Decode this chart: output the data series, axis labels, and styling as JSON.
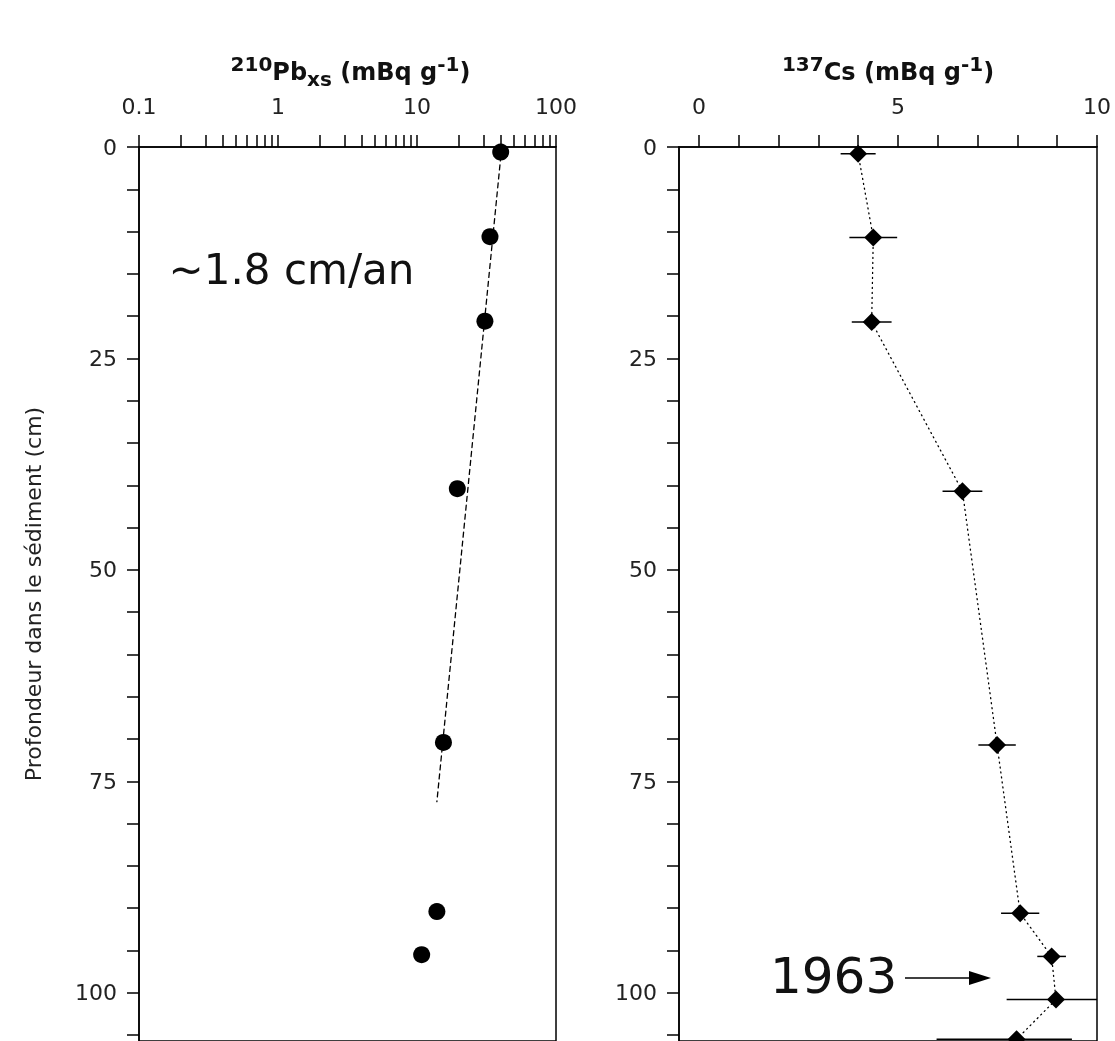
{
  "chart_data": [
    {
      "type": "scatter",
      "xlabel": "$^{210}$Pb$_{xs}$ (mBq g$^{-1}$)",
      "ylabel": "Profondeur dans le sédiment (cm)",
      "log": "x",
      "xlim": [
        0.1,
        100
      ],
      "xticks": [
        0.1,
        {
          "value": 0.2,
          "label": null
        },
        {
          "value": 0.3,
          "label": null
        },
        {
          "value": 0.4,
          "label": null
        },
        {
          "value": 0.5,
          "label": null
        },
        {
          "value": 0.6,
          "label": null
        },
        {
          "value": 0.7,
          "label": null
        },
        {
          "value": 0.8,
          "label": null
        },
        {
          "value": 0.9,
          "label": null
        },
        1,
        {
          "value": 2,
          "label": null
        },
        {
          "value": 3,
          "label": null
        },
        {
          "value": 4,
          "label": null
        },
        {
          "value": 5,
          "label": null
        },
        {
          "value": 6,
          "label": null
        },
        {
          "value": 7,
          "label": null
        },
        {
          "value": 8,
          "label": null
        },
        {
          "value": 9,
          "label": null
        },
        10,
        {
          "value": 20,
          "label": null
        },
        {
          "value": 30,
          "label": null
        },
        {
          "value": 40,
          "label": null
        },
        {
          "value": 50,
          "label": null
        },
        {
          "value": 60,
          "label": null
        },
        {
          "value": 70,
          "label": null
        },
        {
          "value": 80,
          "label": null
        },
        {
          "value": 90,
          "label": null
        },
        100
      ],
      "ylim": [
        105.7,
        0
      ],
      "yticks": [
        0,
        {
          "value": 5,
          "label": null
        },
        {
          "value": 10,
          "label": null
        },
        {
          "value": 15,
          "label": null
        },
        {
          "value": 20,
          "label": null
        },
        25,
        {
          "value": 30,
          "label": null
        },
        {
          "value": 35,
          "label": null
        },
        {
          "value": 40,
          "label": null
        },
        {
          "value": 45,
          "label": null
        },
        50,
        {
          "value": 55,
          "label": null
        },
        {
          "value": 60,
          "label": null
        },
        {
          "value": 65,
          "label": null
        },
        {
          "value": 70,
          "label": null
        },
        75,
        {
          "value": 80,
          "label": null
        },
        {
          "value": 85,
          "label": null
        },
        {
          "value": 90,
          "label": null
        },
        {
          "value": 95,
          "label": null
        },
        100,
        {
          "value": 105,
          "label": null
        }
      ],
      "marker": "circle",
      "annotations": [
        "~1.8 cm/an"
      ],
      "series": [
        {
          "type": "scatter",
          "color": "#000000",
          "x": [
            40,
            33.5,
            30.8,
            19.5,
            15.5,
            13.9,
            10.8
          ],
          "values": [
            0.6,
            10.6,
            20.6,
            40.4,
            70.4,
            90.4,
            95.5
          ]
        },
        {
          "type": "line",
          "color": "#000000",
          "line_style": "dashed",
          "marker": "none",
          "x": [
            40.7,
            13.9
          ],
          "values": [
            0,
            77.4
          ]
        }
      ]
    },
    {
      "type": "line",
      "xlabel": "$^{137}$Cs (mBq g$^{-1}$)",
      "xlim": [
        -0.5,
        10
      ],
      "xticks": [
        0,
        {
          "value": 1,
          "label": null
        },
        {
          "value": 2,
          "label": null
        },
        {
          "value": 3,
          "label": null
        },
        {
          "value": 4,
          "label": null
        },
        5,
        {
          "value": 6,
          "label": null
        },
        {
          "value": 7,
          "label": null
        },
        {
          "value": 8,
          "label": null
        },
        {
          "value": 9,
          "label": null
        },
        10
      ],
      "ylim": [
        105.7,
        0
      ],
      "yticks": [
        0,
        {
          "value": 5,
          "label": null
        },
        {
          "value": 10,
          "label": null
        },
        {
          "value": 15,
          "label": null
        },
        {
          "value": 20,
          "label": null
        },
        25,
        {
          "value": 30,
          "label": null
        },
        {
          "value": 35,
          "label": null
        },
        {
          "value": 40,
          "label": null
        },
        {
          "value": 45,
          "label": null
        },
        50,
        {
          "value": 55,
          "label": null
        },
        {
          "value": 60,
          "label": null
        },
        {
          "value": 65,
          "label": null
        },
        {
          "value": 70,
          "label": null
        },
        75,
        {
          "value": 80,
          "label": null
        },
        {
          "value": 85,
          "label": null
        },
        {
          "value": 90,
          "label": null
        },
        {
          "value": 95,
          "label": null
        },
        100,
        {
          "value": 105,
          "label": null
        }
      ],
      "marker": "diamond",
      "line_style": "dotted",
      "annotations": [
        "1963"
      ],
      "series": [
        {
          "color": "#000000",
          "x": [
            4.0,
            4.38,
            4.34,
            6.62,
            7.49,
            8.07,
            8.86,
            8.97,
            7.98
          ],
          "values": [
            0.8,
            10.7,
            20.7,
            40.7,
            70.7,
            90.6,
            95.7,
            100.8,
            105.5
          ],
          "xerrors": [
            0.44,
            0.6,
            0.5,
            0.5,
            0.47,
            0.48,
            0.36,
            [
              7.73,
              10
            ],
            [
              5.97,
              9.37
            ]
          ]
        }
      ]
    }
  ]
}
